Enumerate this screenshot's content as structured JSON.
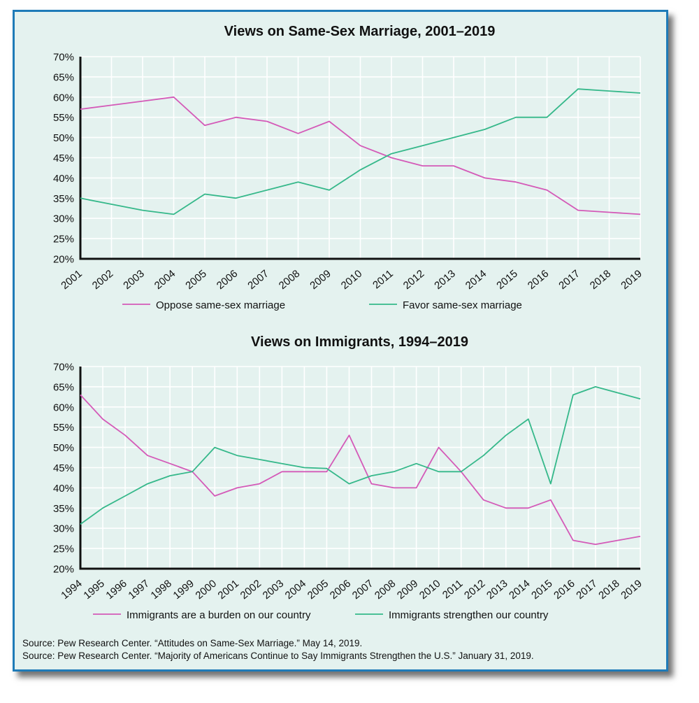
{
  "chart_data": [
    {
      "type": "line",
      "title": "Views on Same-Sex Marriage, 2001–2019",
      "xlabel": "",
      "ylabel": "",
      "x": [
        "2001",
        "2002",
        "2003",
        "2004",
        "2005",
        "2006",
        "2007",
        "2008",
        "2009",
        "2010",
        "2011",
        "2012",
        "2013",
        "2014",
        "2015",
        "2016",
        "2017",
        "2018",
        "2019"
      ],
      "ylim": [
        20,
        70
      ],
      "yticks": [
        "20%",
        "25%",
        "30%",
        "35%",
        "40%",
        "45%",
        "50%",
        "55%",
        "60%",
        "65%",
        "70%"
      ],
      "grid": true,
      "legend": "bottom",
      "series": [
        {
          "name": "Oppose same-sex marriage",
          "color": "#d45ab8",
          "values": [
            57,
            58,
            59,
            60,
            53,
            55,
            54,
            51,
            54,
            48,
            45,
            43,
            43,
            40,
            39,
            37,
            32,
            31.5,
            31
          ]
        },
        {
          "name": "Favor same-sex marriage",
          "color": "#35b88a",
          "values": [
            35,
            33.5,
            32,
            31,
            36,
            35,
            37,
            39,
            37,
            42,
            46,
            48,
            50,
            52,
            55,
            55,
            62,
            61.5,
            61
          ]
        }
      ]
    },
    {
      "type": "line",
      "title": "Views on Immigrants, 1994–2019",
      "xlabel": "",
      "ylabel": "",
      "x": [
        "1994",
        "1995",
        "1996",
        "1997",
        "1998",
        "1999",
        "2000",
        "2001",
        "2002",
        "2003",
        "2004",
        "2005",
        "2006",
        "2007",
        "2008",
        "2009",
        "2010",
        "2011",
        "2012",
        "2013",
        "2014",
        "2015",
        "2016",
        "2017",
        "2018",
        "2019"
      ],
      "ylim": [
        20,
        70
      ],
      "yticks": [
        "20%",
        "25%",
        "30%",
        "35%",
        "40%",
        "45%",
        "50%",
        "55%",
        "60%",
        "65%",
        "70%"
      ],
      "grid": true,
      "legend": "bottom",
      "series": [
        {
          "name": "Immigrants are a burden on our country",
          "color": "#d45ab8",
          "values": [
            63,
            57,
            53,
            48,
            46,
            44,
            38,
            40,
            41,
            44,
            44,
            44,
            53,
            41,
            40,
            40,
            50,
            44,
            37,
            35,
            35,
            37,
            27,
            26,
            27,
            28
          ]
        },
        {
          "name": "Immigrants strengthen our country",
          "color": "#35b88a",
          "values": [
            31,
            35,
            38,
            41,
            43,
            44,
            50,
            48,
            47,
            46,
            45,
            44.8,
            41,
            43,
            44,
            46,
            44,
            44,
            48,
            53,
            57,
            41,
            63,
            65,
            63.5,
            62
          ]
        }
      ]
    }
  ],
  "sources": [
    "Source: Pew Research Center. “Attitudes on Same-Sex Marriage.” May 14, 2019.",
    "Source: Pew Research Center. “Majority of Americans Continue to Say Immigrants Strengthen the U.S.” January 31, 2019."
  ]
}
